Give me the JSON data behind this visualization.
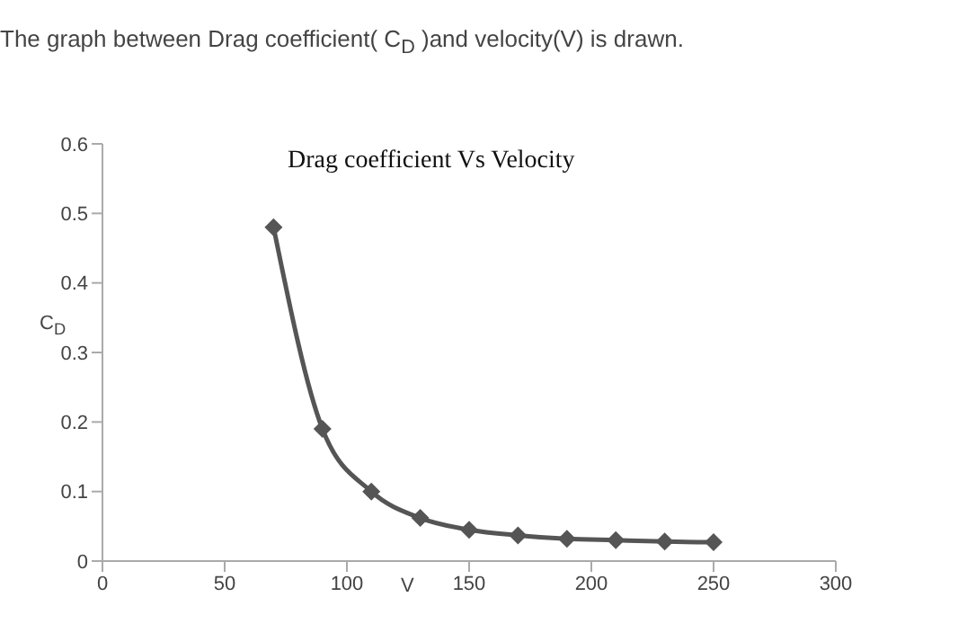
{
  "chart_data": {
    "type": "line",
    "title": "Drag coefficient Vs Velocity",
    "annotations": [
      "The graph between Drag coefficient( C$_{D}$ )and velocity(V) is drawn."
    ],
    "xlabel": "V",
    "ylabel": "C$_{D}$",
    "x": [
      70,
      90,
      110,
      130,
      150,
      170,
      190,
      210,
      230,
      250
    ],
    "series": [
      {
        "color": "#555555",
        "values": [
          0.48,
          0.19,
          0.1,
          0.062,
          0.045,
          0.037,
          0.032,
          0.03,
          0.028,
          0.027
        ]
      }
    ],
    "xlim": [
      0,
      300
    ],
    "xticks": [
      0,
      50,
      100,
      150,
      200,
      250,
      300
    ],
    "ylim": [
      0,
      0.6
    ],
    "yticks": [
      0,
      0.1,
      0.2,
      0.3,
      0.4,
      0.5,
      0.6
    ],
    "grid": false,
    "legend": false,
    "marker": "diamond",
    "line_style": "solid"
  }
}
